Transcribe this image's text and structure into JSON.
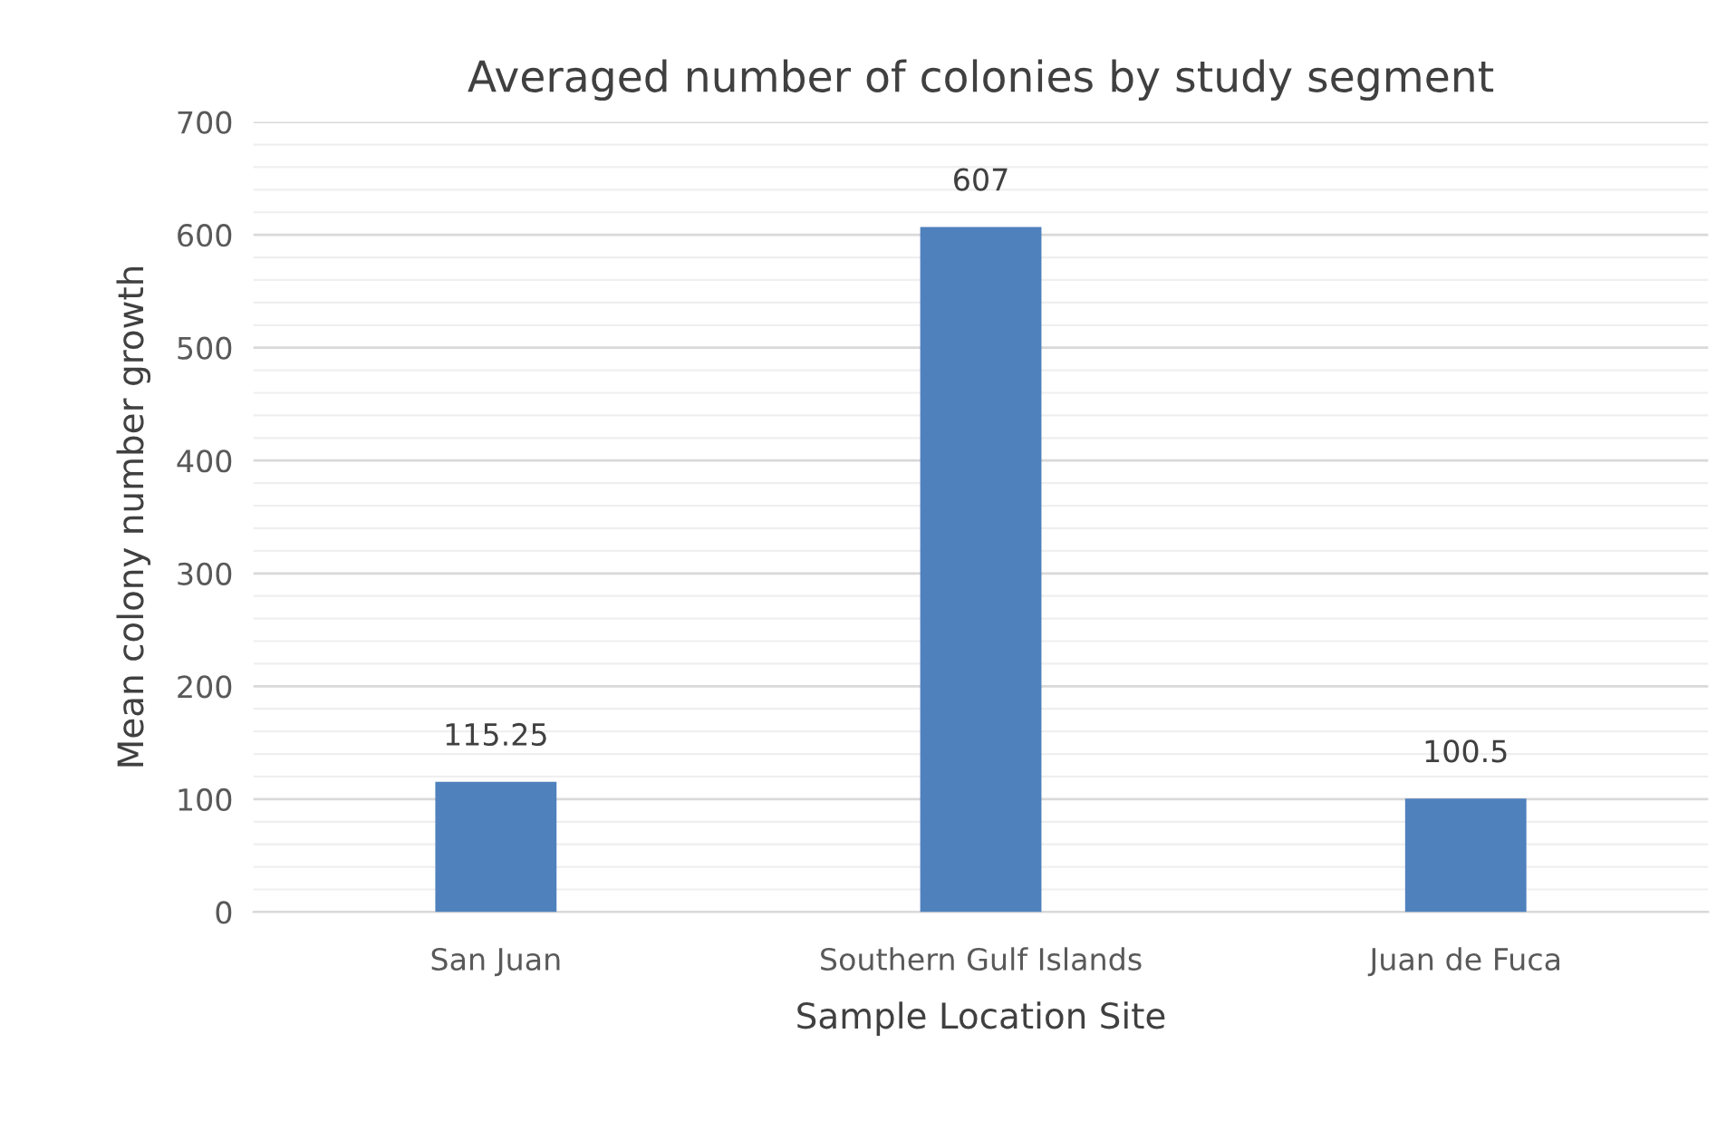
{
  "chart_data": {
    "type": "bar",
    "title": "Averaged number of colonies by study segment",
    "xlabel": "Sample Location Site",
    "ylabel": "Mean colony number growth",
    "categories": [
      "San Juan",
      "Southern Gulf Islands",
      "Juan de Fuca"
    ],
    "values": [
      115.25,
      607,
      100.5
    ],
    "color": "#4f81bd",
    "ylim": [
      0,
      700
    ],
    "yticks": [
      0,
      100,
      200,
      300,
      400,
      500,
      600,
      700
    ],
    "grid": "y",
    "data_labels": true,
    "legend": false
  }
}
